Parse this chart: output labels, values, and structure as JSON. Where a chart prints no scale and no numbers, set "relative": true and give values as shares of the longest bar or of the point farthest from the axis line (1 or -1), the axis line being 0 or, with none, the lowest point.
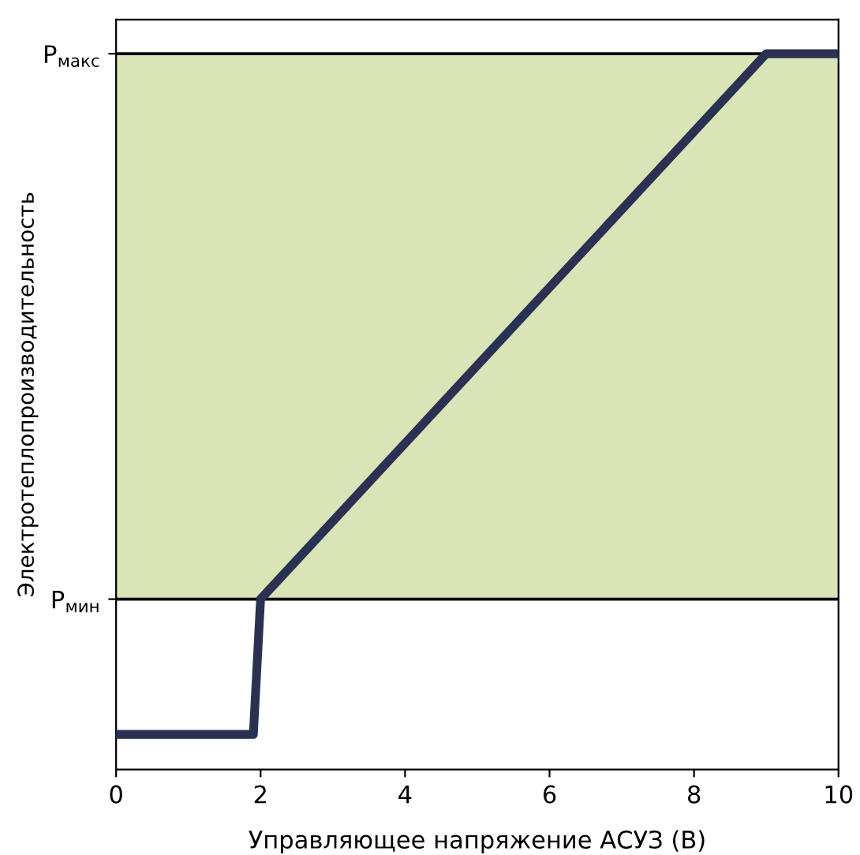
{
  "chart_data": {
    "type": "line",
    "relative": true,
    "xlabel": "Управляющее напряжение АСУЗ (В)",
    "ylabel": "Электротеплопроизводительность",
    "xlim": [
      0,
      10
    ],
    "xticks": [
      0,
      2,
      4,
      6,
      8,
      10
    ],
    "series": [
      {
        "color": "#2b3152",
        "x": [
          0,
          1.9,
          2,
          9,
          10
        ],
        "values": [
          0.049,
          0.049,
          0.238,
          1,
          1
        ]
      }
    ],
    "ref_lines": [
      {
        "axis": "y",
        "value": 0.238,
        "label": "P$_{мин}$",
        "color": "#000000"
      },
      {
        "axis": "y",
        "value": 1,
        "label": "P$_{макс}$",
        "color": "#000000"
      }
    ],
    "bands": [
      {
        "axis": "y",
        "from": 0.238,
        "to": 1,
        "color": "#d9e4b7"
      }
    ],
    "grid": false,
    "legend": false,
    "marker": "none",
    "line_style": "solid"
  }
}
